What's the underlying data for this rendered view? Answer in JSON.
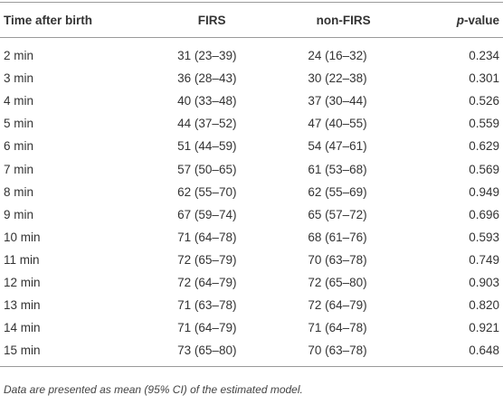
{
  "table": {
    "header": [
      "Time after birth",
      "FIRS",
      "non-FIRS",
      "p-value"
    ],
    "rows": [
      [
        "2 min",
        "31 (23–39)",
        "24 (16–32)",
        "0.234"
      ],
      [
        "3 min",
        "36 (28–43)",
        "30 (22–38)",
        "0.301"
      ],
      [
        "4 min",
        "40 (33–48)",
        "37 (30–44)",
        "0.526"
      ],
      [
        "5 min",
        "44 (37–52)",
        "47 (40–55)",
        "0.559"
      ],
      [
        "6 min",
        "51 (44–59)",
        "54 (47–61)",
        "0.629"
      ],
      [
        "7 min",
        "57 (50–65)",
        "61 (53–68)",
        "0.569"
      ],
      [
        "8 min",
        "62 (55–70)",
        "62 (55–69)",
        "0.949"
      ],
      [
        "9 min",
        "67 (59–74)",
        "65 (57–72)",
        "0.696"
      ],
      [
        "10 min",
        "71 (64–78)",
        "68 (61–76)",
        "0.593"
      ],
      [
        "11 min",
        "72 (65–79)",
        "70 (63–78)",
        "0.749"
      ],
      [
        "12 min",
        "72 (64–79)",
        "72 (65–80)",
        "0.903"
      ],
      [
        "13 min",
        "71 (63–78)",
        "72 (64–79)",
        "0.820"
      ],
      [
        "14 min",
        "71 (64–79)",
        "71 (64–78)",
        "0.921"
      ],
      [
        "15 min",
        "73 (65–80)",
        "70 (63–78)",
        "0.648"
      ]
    ],
    "footnote": "Data are presented as mean (95% CI) of the estimated model."
  }
}
